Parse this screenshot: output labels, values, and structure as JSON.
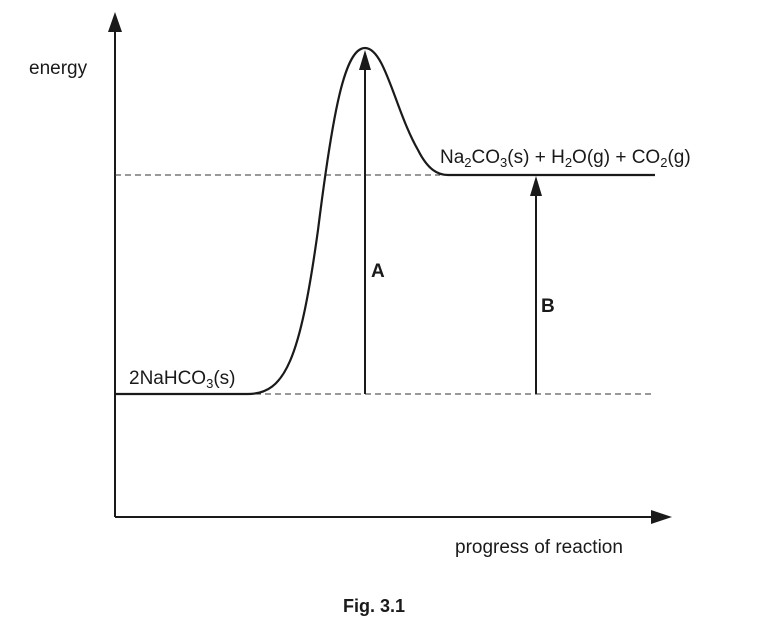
{
  "diagram": {
    "y_axis_label": "energy",
    "x_axis_label": "progress of reaction",
    "reactant": {
      "coef": "2",
      "a": "NaHCO",
      "a_sub": "3",
      "state": "(s)"
    },
    "product": {
      "p1": "Na",
      "p1_sub": "2",
      "p2": "CO",
      "p2_sub": "3",
      "p2_state": "(s) + ",
      "p3": "H",
      "p3_sub": "2",
      "p3_state": "O(g) + ",
      "p4": "CO",
      "p4_sub": "2",
      "p4_state": "(g)"
    },
    "arrow_a_label": "A",
    "arrow_b_label": "B",
    "caption": "Fig. 3.1"
  }
}
